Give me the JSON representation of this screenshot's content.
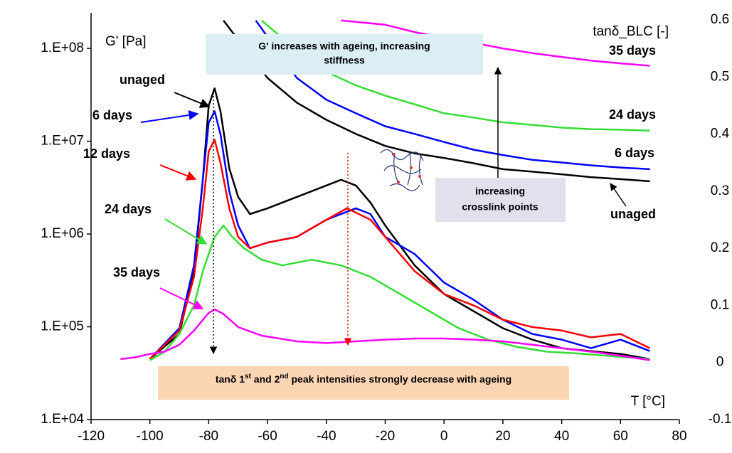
{
  "chart_data": {
    "type": "line",
    "y_label": "G' [Pa]",
    "y2_label": "tanδ_BLC [-]",
    "x_label": "T [°C]",
    "xlim": [
      -120,
      80
    ],
    "xticks": [
      -120,
      -100,
      -80,
      -60,
      -40,
      -20,
      0,
      20,
      40,
      60,
      80
    ],
    "ylim": [
      10000,
      203000000
    ],
    "log_y": true,
    "yticks": [
      {
        "value": 10000,
        "label": "1.E+04"
      },
      {
        "value": 100000,
        "label": "1.E+05"
      },
      {
        "value": 1000000,
        "label": "1.E+06"
      },
      {
        "value": 10000000,
        "label": "1.E+07"
      },
      {
        "value": 100000000,
        "label": "1.E+08"
      }
    ],
    "y2lim": [
      -0.1,
      0.6
    ],
    "y2ticks": [
      -0.1,
      0,
      0.1,
      0.2,
      0.3,
      0.4,
      0.5,
      0.6
    ],
    "series": [
      {
        "name": "unaged",
        "color": "#000000",
        "x": [
          -75,
          -60,
          -50,
          -40,
          -30,
          -20,
          -10,
          0,
          10,
          20,
          30,
          40,
          50,
          60,
          70
        ],
        "values": [
          200000000,
          48000000,
          26000000,
          17000000,
          12000000,
          8900000,
          7400000,
          6600000,
          5800000,
          5000000,
          4700000,
          4400000,
          4100000,
          3900000,
          3700000
        ]
      },
      {
        "name": "6 days",
        "color": "#0000ff",
        "x": [
          -64,
          -50,
          -40,
          -30,
          -20,
          -10,
          0,
          10,
          20,
          30,
          40,
          50,
          60,
          70
        ],
        "values": [
          200000000,
          48000000,
          28000000,
          20000000,
          14500000,
          12000000,
          9800000,
          8100000,
          7100000,
          6300000,
          5900000,
          5500000,
          5200000,
          5000000
        ]
      },
      {
        "name": "24 days",
        "color": "#33dd33",
        "x": [
          -62,
          -50,
          -40,
          -30,
          -20,
          -10,
          0,
          10,
          20,
          30,
          40,
          50,
          60,
          70
        ],
        "values": [
          200000000,
          95000000,
          56000000,
          40000000,
          31000000,
          25000000,
          20000000,
          18000000,
          16000000,
          15000000,
          14000000,
          13500000,
          13300000,
          13000000
        ]
      },
      {
        "name": "35 days",
        "color": "#ff00ff",
        "x": [
          -35,
          -20,
          -10,
          0,
          10,
          20,
          30,
          40,
          50,
          60,
          70
        ],
        "values": [
          200000000,
          180000000,
          150000000,
          130000000,
          115000000,
          100000000,
          89000000,
          81000000,
          74000000,
          69000000,
          65000000
        ]
      },
      {
        "name": "unaged",
        "color": "#000000",
        "axis": "y2",
        "x": [
          -100,
          -90,
          -85,
          -82,
          -80,
          -78,
          -76,
          -73,
          -70,
          -66,
          -60,
          -50,
          -40,
          -35,
          -30,
          -25,
          -20,
          -10,
          0,
          10,
          20,
          30,
          40,
          50,
          60,
          70
        ],
        "values": [
          0.006,
          0.05,
          0.16,
          0.32,
          0.45,
          0.48,
          0.44,
          0.34,
          0.29,
          0.26,
          0.27,
          0.29,
          0.31,
          0.32,
          0.31,
          0.28,
          0.24,
          0.17,
          0.12,
          0.09,
          0.06,
          0.04,
          0.025,
          0.02,
          0.015,
          0.006
        ]
      },
      {
        "name": "6 days",
        "color": "#0000ff",
        "axis": "y2",
        "x": [
          -100,
          -90,
          -85,
          -82,
          -80,
          -78,
          -76,
          -73,
          -70,
          -66,
          -60,
          -50,
          -40,
          -30,
          -25,
          -20,
          -10,
          0,
          10,
          20,
          30,
          40,
          50,
          60,
          70
        ],
        "values": [
          0.006,
          0.06,
          0.17,
          0.32,
          0.42,
          0.44,
          0.4,
          0.3,
          0.24,
          0.2,
          0.21,
          0.22,
          0.25,
          0.27,
          0.26,
          0.22,
          0.19,
          0.14,
          0.11,
          0.075,
          0.05,
          0.04,
          0.025,
          0.04,
          0.02
        ]
      },
      {
        "name": "12 days",
        "color": "#ff0000",
        "axis": "y2",
        "x": [
          -100,
          -90,
          -85,
          -82,
          -80,
          -78,
          -76,
          -73,
          -70,
          -66,
          -60,
          -50,
          -40,
          -33,
          -25,
          -20,
          -10,
          0,
          10,
          20,
          30,
          40,
          50,
          60,
          70
        ],
        "values": [
          0.006,
          0.056,
          0.15,
          0.27,
          0.37,
          0.39,
          0.35,
          0.27,
          0.22,
          0.2,
          0.21,
          0.22,
          0.25,
          0.27,
          0.25,
          0.22,
          0.16,
          0.12,
          0.1,
          0.075,
          0.062,
          0.056,
          0.044,
          0.05,
          0.025
        ]
      },
      {
        "name": "24 days",
        "color": "#33dd33",
        "axis": "y2",
        "x": [
          -100,
          -95,
          -90,
          -85,
          -82,
          -78,
          -75,
          -72,
          -68,
          -62,
          -55,
          -45,
          -35,
          -25,
          -15,
          -5,
          5,
          15,
          25,
          35,
          45,
          55,
          70
        ],
        "values": [
          0.004,
          0.019,
          0.05,
          0.1,
          0.16,
          0.22,
          0.24,
          0.22,
          0.2,
          0.18,
          0.17,
          0.18,
          0.17,
          0.15,
          0.12,
          0.09,
          0.06,
          0.04,
          0.027,
          0.019,
          0.016,
          0.012,
          0.006
        ]
      },
      {
        "name": "35 days",
        "color": "#ff00ff",
        "axis": "y2",
        "x": [
          -110,
          -105,
          -100,
          -95,
          -90,
          -85,
          -80,
          -78,
          -75,
          -70,
          -62,
          -50,
          -40,
          -30,
          -20,
          -10,
          0,
          10,
          20,
          30,
          40,
          50,
          60,
          70
        ],
        "values": [
          0.006,
          0.009,
          0.015,
          0.019,
          0.031,
          0.056,
          0.087,
          0.093,
          0.085,
          0.062,
          0.047,
          0.037,
          0.034,
          0.037,
          0.04,
          0.042,
          0.042,
          0.04,
          0.037,
          0.031,
          0.025,
          0.019,
          0.012,
          0.004
        ]
      }
    ],
    "annotations": {
      "stiffness": [
        "G' increases with ageing, increasing",
        "stiffness"
      ],
      "crosslink": [
        "increasing",
        "crosslink points"
      ],
      "peaks": [
        "tanδ 1",
        "st",
        " and 2",
        "nd",
        " peak intensities strongly decrease with ageing"
      ]
    }
  }
}
